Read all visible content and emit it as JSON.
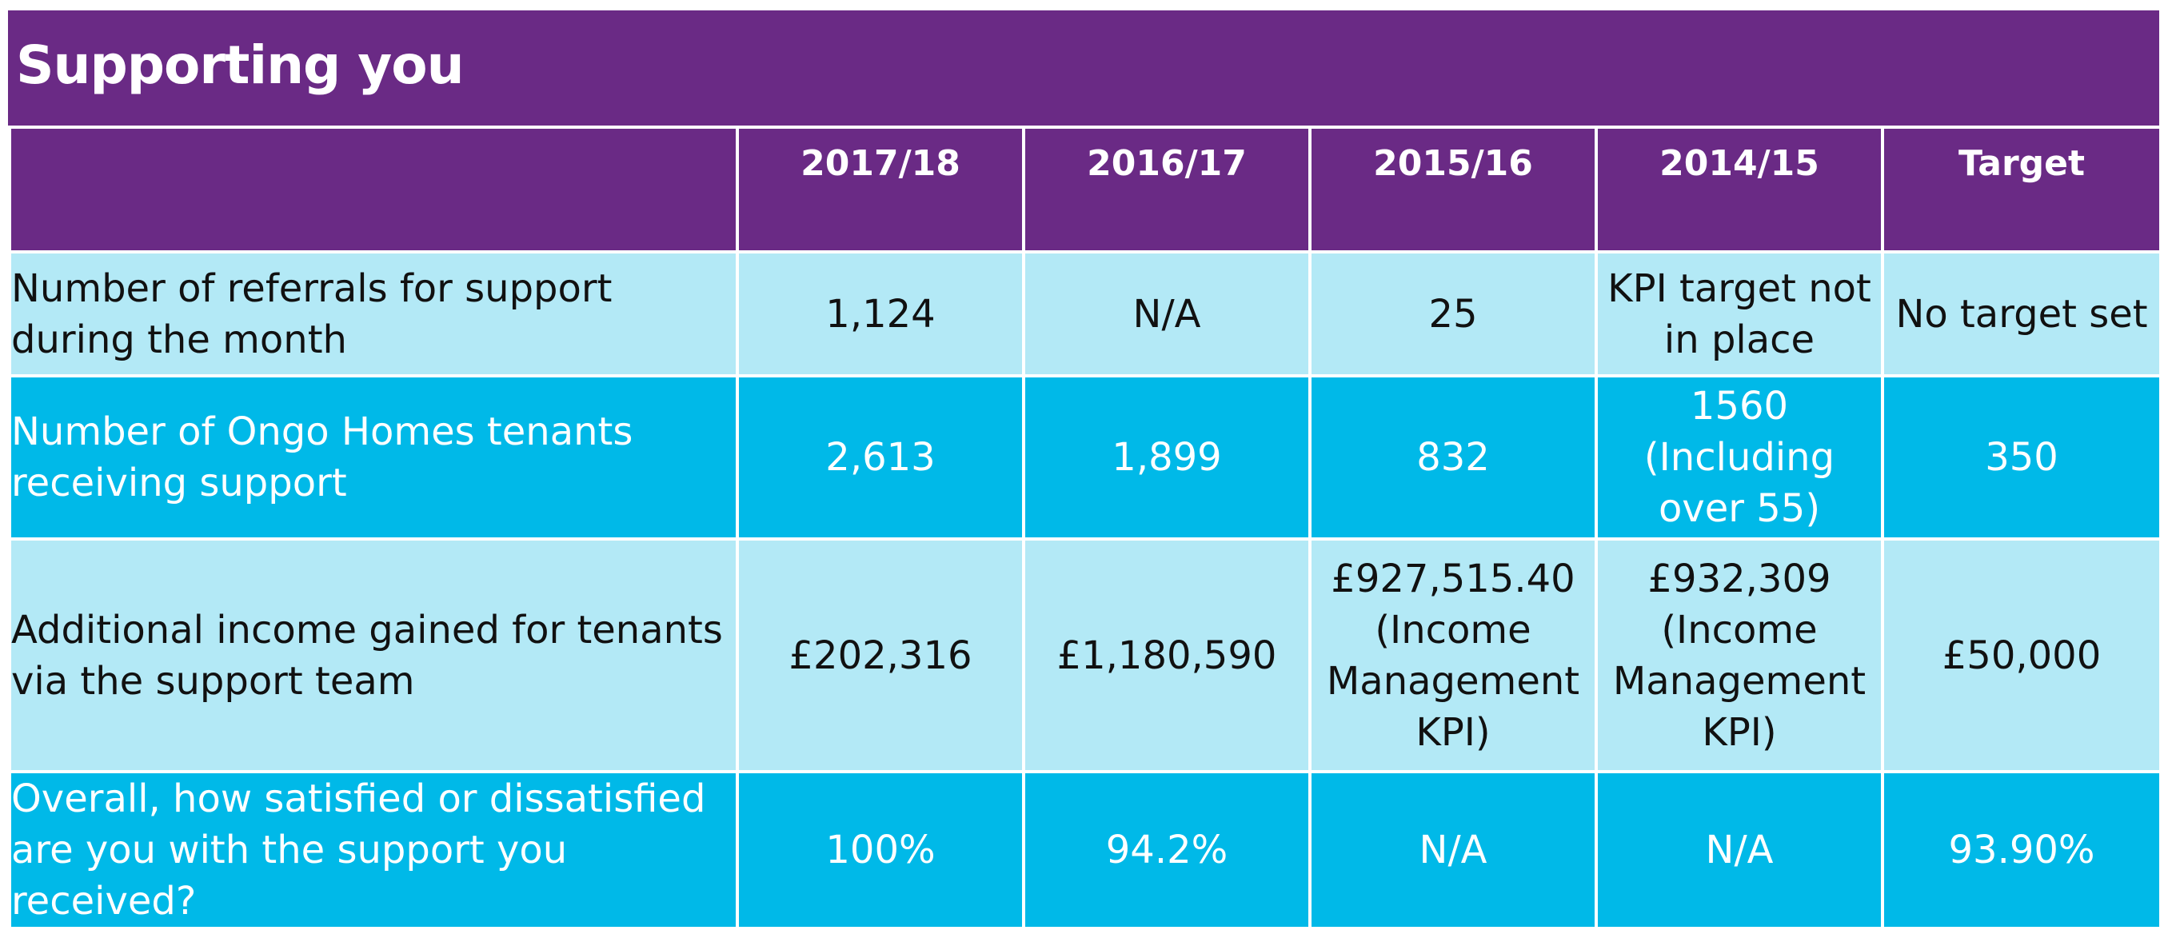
{
  "title": "Supporting you",
  "table": {
    "headers": [
      "",
      "2017/18",
      "2016/17",
      "2015/16",
      "2014/15",
      "Target"
    ],
    "rows": [
      {
        "label": [
          "Number of referrals for support",
          "during the month"
        ],
        "values": [
          [
            "1,124"
          ],
          [
            "N/A"
          ],
          [
            "25"
          ],
          [
            "KPI target not",
            "in place"
          ],
          [
            "No target set"
          ]
        ]
      },
      {
        "label": [
          "Number of Ongo Homes tenants",
          "receiving support"
        ],
        "values": [
          [
            "2,613"
          ],
          [
            "1,899"
          ],
          [
            "832"
          ],
          [
            "1560",
            "(Including",
            "over 55)"
          ],
          [
            "350"
          ]
        ]
      },
      {
        "label": [
          "Additional income gained for tenants",
          "via the support team"
        ],
        "values": [
          [
            "£202,316"
          ],
          [
            "£1,180,590"
          ],
          [
            "£927,515.40",
            "(Income",
            "Management",
            "KPI)"
          ],
          [
            "£932,309",
            "(Income",
            "Management",
            "KPI)"
          ],
          [
            "£50,000"
          ]
        ]
      },
      {
        "label": [
          "Overall, how satisfied or dissatisfied",
          "are you with the support you received?"
        ],
        "values": [
          [
            "100%"
          ],
          [
            "94.2%"
          ],
          [
            "N/A"
          ],
          [
            "N/A"
          ],
          [
            "93.90%"
          ]
        ]
      }
    ]
  },
  "colors": {
    "header_purple": "#6a2a85",
    "row_light": "#b3e9f6",
    "row_dark": "#00b9e8"
  }
}
